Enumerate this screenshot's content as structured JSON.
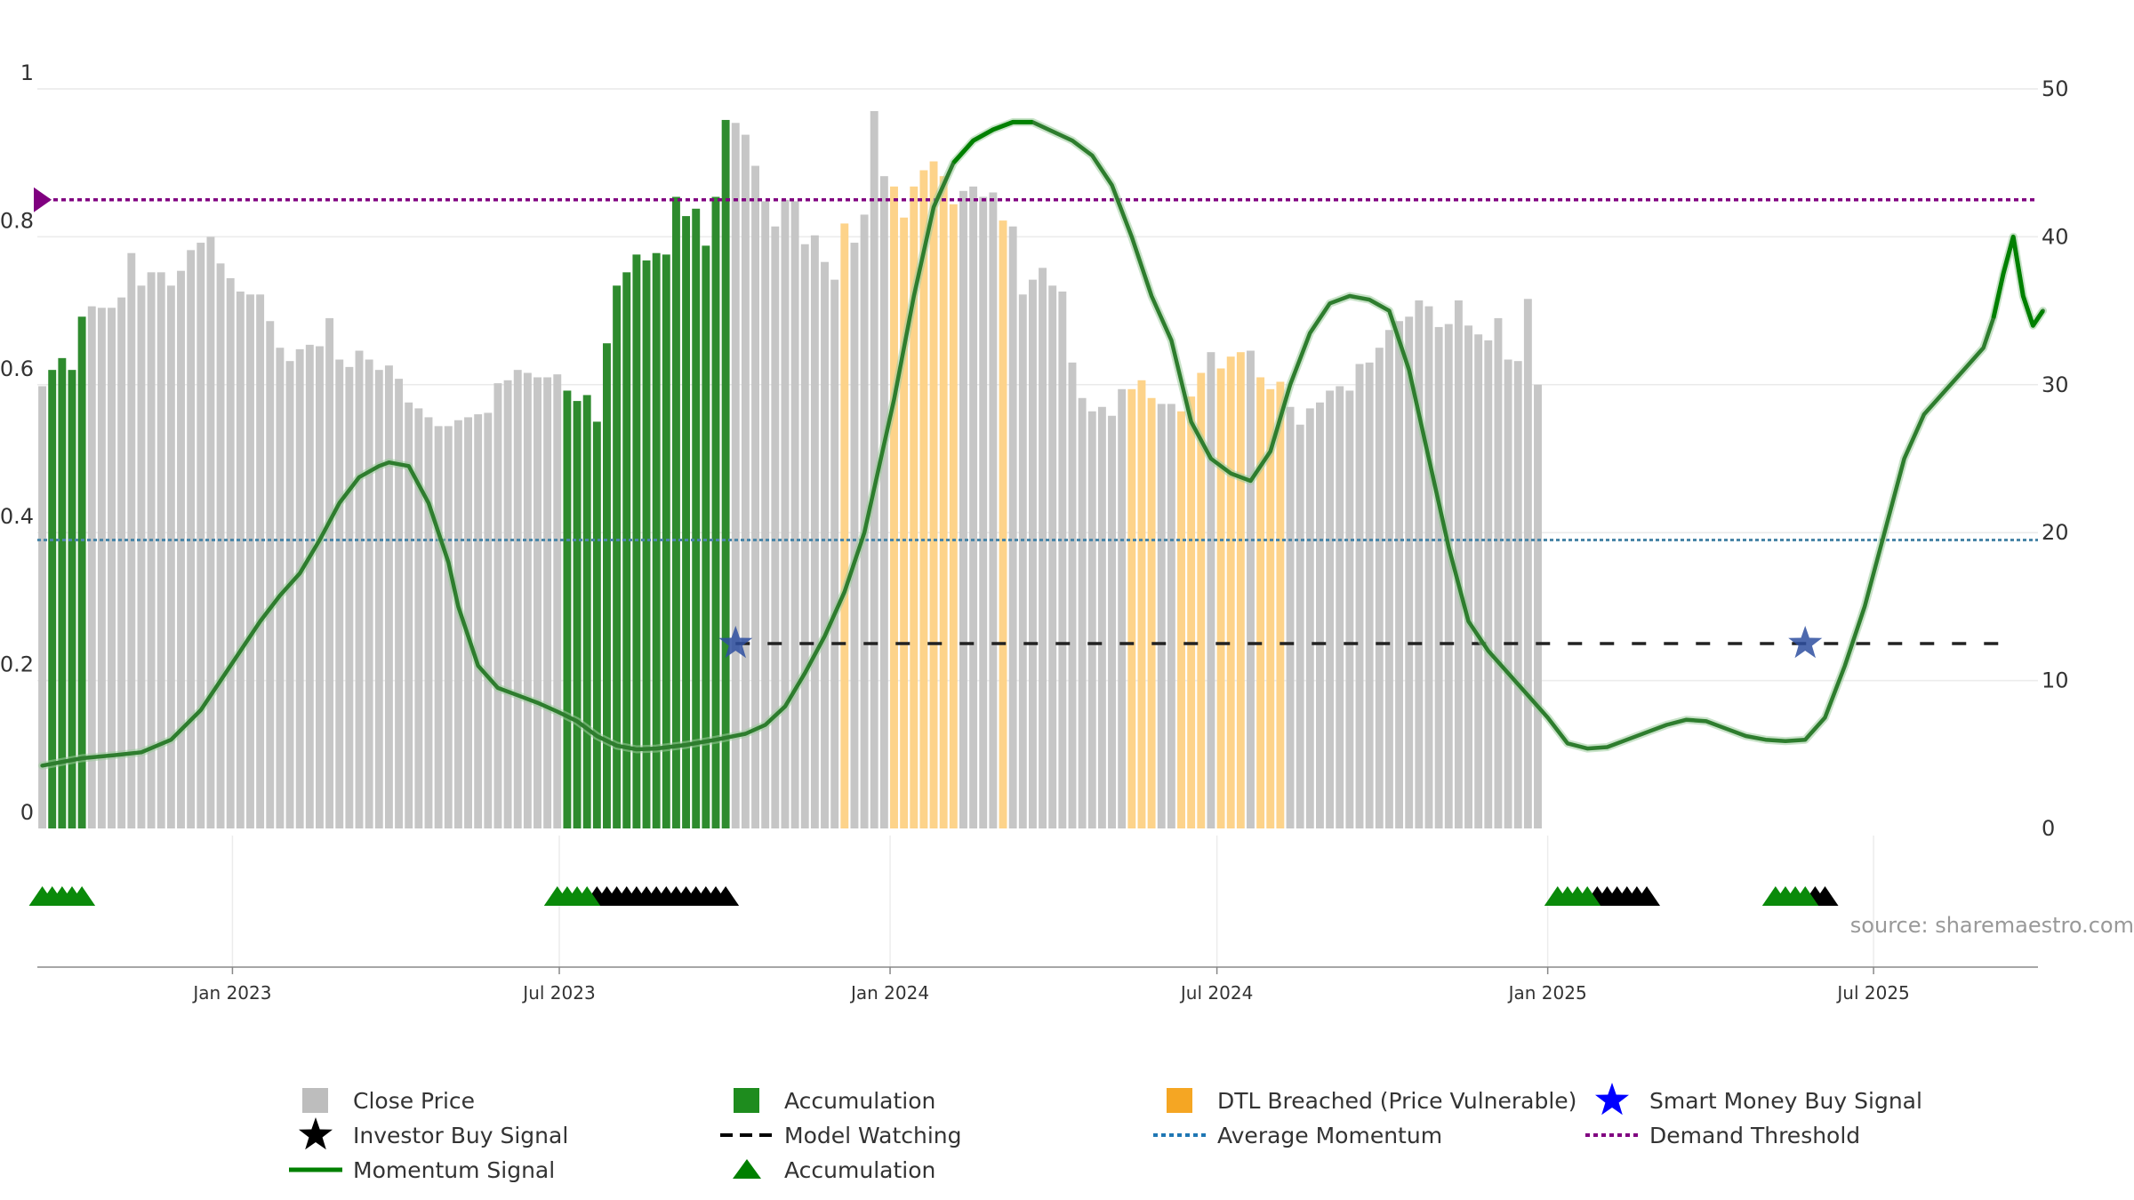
{
  "chart_data": {
    "type": "bar",
    "title": "",
    "xlabel": "",
    "ylabel": "",
    "left_axis": {
      "range": [
        0,
        1
      ],
      "ticks": [
        "0",
        "0.2",
        "0.4",
        "0.6",
        "0.8",
        "1"
      ]
    },
    "right_axis": {
      "range": [
        0,
        50
      ],
      "ticks": [
        "0",
        "10",
        "20",
        "30",
        "40",
        "50"
      ]
    },
    "x_ticks": [
      {
        "label": "Jan 2023",
        "pos": 19.2
      },
      {
        "label": "Jul 2023",
        "pos": 52.2
      },
      {
        "label": "Jan 2024",
        "pos": 85.6
      },
      {
        "label": "Jul 2024",
        "pos": 118.6
      },
      {
        "label": "Jan 2025",
        "pos": 152.0
      },
      {
        "label": "Jul 2025",
        "pos": 184.9
      }
    ],
    "x_range": [
      0,
      199
    ],
    "source": "source: sharemaestro.com",
    "close_price": [
      29.9,
      31,
      31.8,
      31,
      34.6,
      35.3,
      35.2,
      35.2,
      35.9,
      38.9,
      36.7,
      37.6,
      37.6,
      36.7,
      37.7,
      39.1,
      39.6,
      40,
      38.2,
      37.2,
      36.3,
      36.1,
      36.1,
      34.3,
      32.5,
      31.6,
      32.4,
      32.7,
      32.6,
      34.5,
      31.7,
      31.2,
      32.3,
      31.7,
      31.0,
      31.3,
      30.4,
      28.8,
      28.4,
      27.8,
      27.2,
      27.2,
      27.6,
      27.8,
      28.0,
      28.1,
      30.1,
      30.3,
      31,
      30.8,
      30.5,
      30.5,
      30.7,
      29.6,
      28.9,
      29.3,
      27.5,
      32.8,
      36.7,
      37.6,
      38.8,
      38.4,
      38.9,
      38.8,
      42.7,
      41.4,
      41.9,
      39.4,
      42.7,
      47.9,
      47.7,
      46.9,
      44.8,
      42.4,
      40.7,
      42.5,
      42.4,
      39.5,
      40.1,
      38.3,
      37.1,
      40.9,
      39.6,
      41.5,
      48.5,
      44.1,
      43.4,
      41.3,
      43.4,
      44.5,
      45.1,
      44.1,
      42.2,
      43.1,
      43.4,
      42.7,
      43,
      41.1,
      40.7,
      36.1,
      37.1,
      37.9,
      36.7,
      36.3,
      31.5,
      29.1,
      28.2,
      28.5,
      27.9,
      29.7,
      29.7,
      30.3,
      29.1,
      28.7,
      28.7,
      28.2,
      29.2,
      30.8,
      32.2,
      31.1,
      31.9,
      32.2,
      32.3,
      30.5,
      29.7,
      30.2,
      28.5,
      27.3,
      28.4,
      28.8,
      29.6,
      29.9,
      29.6,
      31.4,
      31.5,
      32.5,
      33.7,
      34.3,
      34.6,
      35.7,
      35.3,
      33.9,
      34.1,
      35.7,
      34.0,
      33.4,
      33.0,
      34.5,
      31.7,
      31.6,
      35.8,
      30.0
    ],
    "bar_colors": [
      {
        "from": 0,
        "to": 0,
        "class": "close"
      },
      {
        "from": 1,
        "to": 4,
        "class": "acc"
      },
      {
        "from": 5,
        "to": 52,
        "class": "close"
      },
      {
        "from": 53,
        "to": 69,
        "class": "acc"
      },
      {
        "from": 70,
        "to": 80,
        "class": "close"
      },
      {
        "from": 81,
        "to": 81,
        "class": "dtl"
      },
      {
        "from": 82,
        "to": 85,
        "class": "close"
      },
      {
        "from": 86,
        "to": 92,
        "class": "dtl"
      },
      {
        "from": 93,
        "to": 96,
        "class": "close"
      },
      {
        "from": 97,
        "to": 97,
        "class": "dtl"
      },
      {
        "from": 98,
        "to": 109,
        "class": "close"
      },
      {
        "from": 110,
        "to": 112,
        "class": "dtl"
      },
      {
        "from": 113,
        "to": 114,
        "class": "close"
      },
      {
        "from": 115,
        "to": 117,
        "class": "dtl"
      },
      {
        "from": 118,
        "to": 118,
        "class": "close"
      },
      {
        "from": 119,
        "to": 121,
        "class": "dtl"
      },
      {
        "from": 122,
        "to": 122,
        "class": "close"
      },
      {
        "from": 123,
        "to": 125,
        "class": "dtl"
      },
      {
        "from": 126,
        "to": 153,
        "class": "close"
      },
      {
        "from": 154,
        "to": 164,
        "class": "acc"
      },
      {
        "from": 165,
        "to": 175,
        "class": "close"
      },
      {
        "from": 176,
        "to": 181,
        "class": "acc"
      },
      {
        "from": 182,
        "to": 199,
        "class": "close"
      }
    ],
    "momentum_signal": [
      [
        0,
        0.085
      ],
      [
        4,
        0.095
      ],
      [
        8,
        0.1
      ],
      [
        10,
        0.103
      ],
      [
        13,
        0.12
      ],
      [
        16,
        0.16
      ],
      [
        19,
        0.22
      ],
      [
        22,
        0.28
      ],
      [
        24,
        0.315
      ],
      [
        26,
        0.345
      ],
      [
        28,
        0.39
      ],
      [
        30,
        0.44
      ],
      [
        32,
        0.475
      ],
      [
        34,
        0.49
      ],
      [
        35,
        0.495
      ],
      [
        37,
        0.49
      ],
      [
        39,
        0.44
      ],
      [
        41,
        0.36
      ],
      [
        42,
        0.3
      ],
      [
        44,
        0.22
      ],
      [
        46,
        0.19
      ],
      [
        48,
        0.18
      ],
      [
        50,
        0.17
      ],
      [
        52,
        0.158
      ],
      [
        54,
        0.145
      ],
      [
        56,
        0.125
      ],
      [
        58,
        0.112
      ],
      [
        60,
        0.107
      ],
      [
        62,
        0.108
      ],
      [
        65,
        0.113
      ],
      [
        68,
        0.12
      ],
      [
        71,
        0.128
      ],
      [
        73,
        0.14
      ],
      [
        75,
        0.165
      ],
      [
        77,
        0.21
      ],
      [
        79,
        0.26
      ],
      [
        81,
        0.32
      ],
      [
        83,
        0.4
      ],
      [
        86,
        0.58
      ],
      [
        88,
        0.72
      ],
      [
        90,
        0.84
      ],
      [
        92,
        0.9
      ],
      [
        94,
        0.93
      ],
      [
        96,
        0.945
      ],
      [
        98,
        0.955
      ],
      [
        100,
        0.955
      ],
      [
        104,
        0.93
      ],
      [
        106,
        0.91
      ],
      [
        108,
        0.87
      ],
      [
        110,
        0.8
      ],
      [
        112,
        0.72
      ],
      [
        114,
        0.66
      ],
      [
        116,
        0.55
      ],
      [
        118,
        0.5
      ],
      [
        120,
        0.48
      ],
      [
        122,
        0.47
      ],
      [
        124,
        0.51
      ],
      [
        126,
        0.6
      ],
      [
        128,
        0.67
      ],
      [
        130,
        0.71
      ],
      [
        132,
        0.72
      ],
      [
        134,
        0.715
      ],
      [
        136,
        0.7
      ],
      [
        138,
        0.62
      ],
      [
        140,
        0.5
      ],
      [
        142,
        0.38
      ],
      [
        144,
        0.28
      ],
      [
        146,
        0.24
      ],
      [
        148,
        0.21
      ],
      [
        150,
        0.18
      ],
      [
        152,
        0.15
      ],
      [
        154,
        0.115
      ],
      [
        156,
        0.108
      ],
      [
        158,
        0.11
      ],
      [
        160,
        0.12
      ],
      [
        162,
        0.13
      ],
      [
        164,
        0.14
      ],
      [
        166,
        0.147
      ],
      [
        168,
        0.145
      ],
      [
        170,
        0.135
      ],
      [
        172,
        0.125
      ],
      [
        174,
        0.12
      ],
      [
        176,
        0.118
      ],
      [
        178,
        0.12
      ],
      [
        180,
        0.15
      ],
      [
        182,
        0.22
      ],
      [
        184,
        0.3
      ],
      [
        186,
        0.4
      ],
      [
        188,
        0.5
      ],
      [
        190,
        0.56
      ],
      [
        192,
        0.59
      ],
      [
        194,
        0.62
      ],
      [
        196,
        0.65
      ],
      [
        197,
        0.69
      ],
      [
        198,
        0.75
      ],
      [
        199,
        0.8
      ],
      [
        200,
        0.72
      ],
      [
        201,
        0.68
      ],
      [
        202,
        0.7
      ]
    ],
    "momentum_highlighted_ranges": [
      [
        92,
        102
      ],
      [
        197,
        202
      ]
    ],
    "average_momentum": 0.39,
    "demand_threshold": 0.85,
    "model_watching": {
      "y": 0.25,
      "from": 70,
      "to": 199
    },
    "smart_money_buy_signals": [
      {
        "x": 70,
        "y": 0.25
      },
      {
        "x": 178,
        "y": 0.25
      }
    ],
    "accumulation_markers": [
      0,
      1,
      2,
      3,
      4,
      52,
      53,
      54,
      55,
      153,
      154,
      155,
      156,
      175,
      176,
      177,
      178
    ],
    "investor_buy_markers": [
      56,
      57,
      58,
      59,
      60,
      61,
      62,
      63,
      64,
      65,
      66,
      67,
      68,
      69,
      157,
      158,
      159,
      160,
      161,
      162,
      179,
      180
    ],
    "legend_position": "bottom",
    "legend": [
      {
        "label": "Close Price",
        "type": "square",
        "color": "#bdbdbd"
      },
      {
        "label": "Accumulation",
        "type": "square",
        "color": "#1e8c1e"
      },
      {
        "label": "DTL Breached (Price Vulnerable)",
        "type": "square",
        "color": "#f5a623"
      },
      {
        "label": "Smart Money Buy Signal",
        "type": "star",
        "color": "#0000ff"
      },
      {
        "label": "Investor Buy Signal",
        "type": "star",
        "color": "#000000"
      },
      {
        "label": "Model Watching",
        "type": "dash",
        "color": "#000000"
      },
      {
        "label": "Average Momentum",
        "type": "dot",
        "color": "#1f77b4"
      },
      {
        "label": "Demand Threshold",
        "type": "dot",
        "color": "#800080"
      },
      {
        "label": "Momentum Signal",
        "type": "line",
        "color": "#008000"
      },
      {
        "label": "Accumulation",
        "type": "triangle",
        "color": "#008000"
      }
    ]
  },
  "colors": {
    "close": "#c6c6c6",
    "acc": "#2e8b2e",
    "dtl": "#fdd38a",
    "momentum": "#2e7d2e",
    "momentum_strong": "#008000",
    "avg_momentum": "#4a86a8",
    "demand": "#800080"
  }
}
